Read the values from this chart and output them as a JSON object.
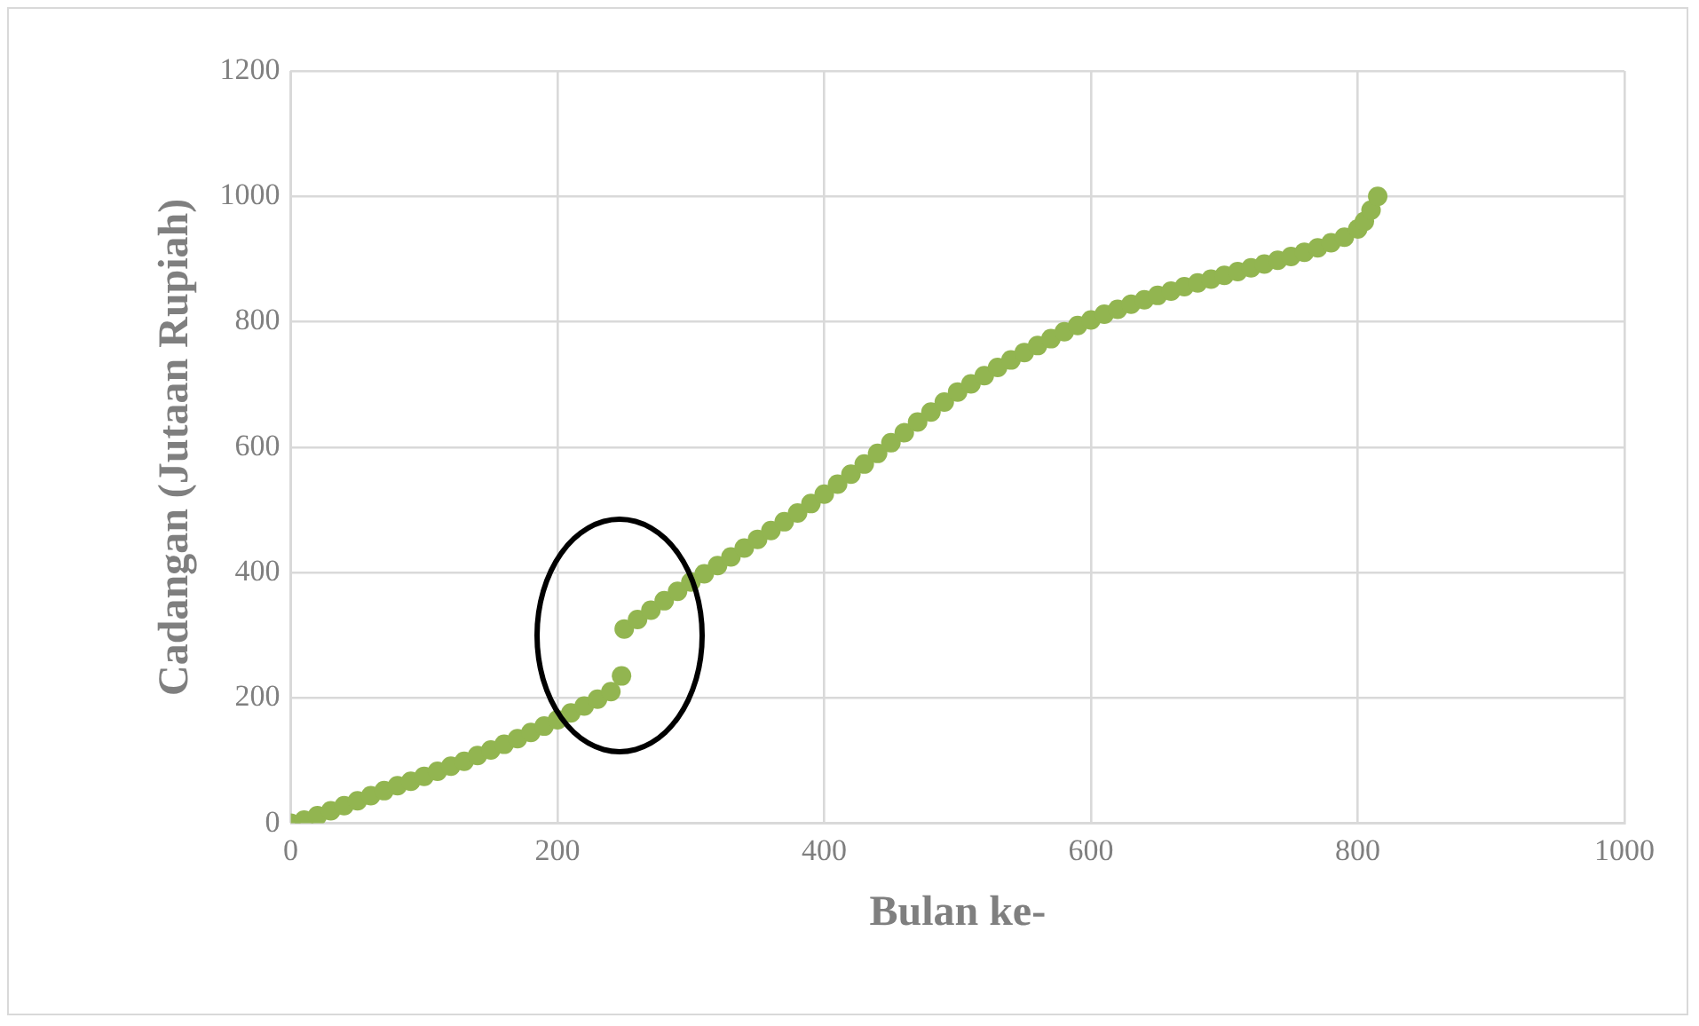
{
  "chart_data": {
    "type": "scatter",
    "xlabel": "Bulan ke-",
    "ylabel": "Cadangan (Jutaan Rupiah)",
    "x": [
      0,
      10,
      20,
      30,
      40,
      50,
      60,
      70,
      80,
      90,
      100,
      110,
      120,
      130,
      140,
      150,
      160,
      170,
      180,
      190,
      200,
      210,
      220,
      230,
      240,
      248,
      250,
      260,
      270,
      280,
      290,
      300,
      310,
      320,
      330,
      340,
      350,
      360,
      370,
      380,
      390,
      400,
      410,
      420,
      430,
      440,
      450,
      460,
      470,
      480,
      490,
      500,
      510,
      520,
      530,
      540,
      550,
      560,
      570,
      580,
      590,
      600,
      610,
      620,
      630,
      640,
      650,
      660,
      670,
      680,
      690,
      700,
      710,
      720,
      730,
      740,
      750,
      760,
      770,
      780,
      790,
      800,
      805,
      810,
      815
    ],
    "series": [
      {
        "color": "#92b550",
        "values": [
          0,
          5,
          12,
          20,
          28,
          36,
          44,
          52,
          60,
          67,
          75,
          83,
          91,
          99,
          108,
          117,
          126,
          135,
          145,
          155,
          165,
          176,
          187,
          198,
          210,
          235,
          310,
          325,
          340,
          355,
          370,
          385,
          398,
          411,
          425,
          439,
          453,
          467,
          481,
          495,
          510,
          525,
          541,
          557,
          573,
          590,
          607,
          623,
          640,
          656,
          672,
          688,
          701,
          714,
          727,
          739,
          751,
          762,
          773,
          784,
          794,
          803,
          812,
          820,
          828,
          835,
          842,
          849,
          856,
          862,
          868,
          874,
          880,
          886,
          892,
          898,
          904,
          911,
          918,
          926,
          935,
          948,
          960,
          978,
          1000
        ]
      }
    ],
    "xlim": [
      0,
      1000
    ],
    "xticks": [
      0,
      200,
      400,
      600,
      800,
      1000
    ],
    "ylim": [
      0,
      1200
    ],
    "yticks": [
      0,
      200,
      400,
      600,
      800,
      1000,
      1200
    ],
    "grid": true,
    "marker": "circle"
  }
}
